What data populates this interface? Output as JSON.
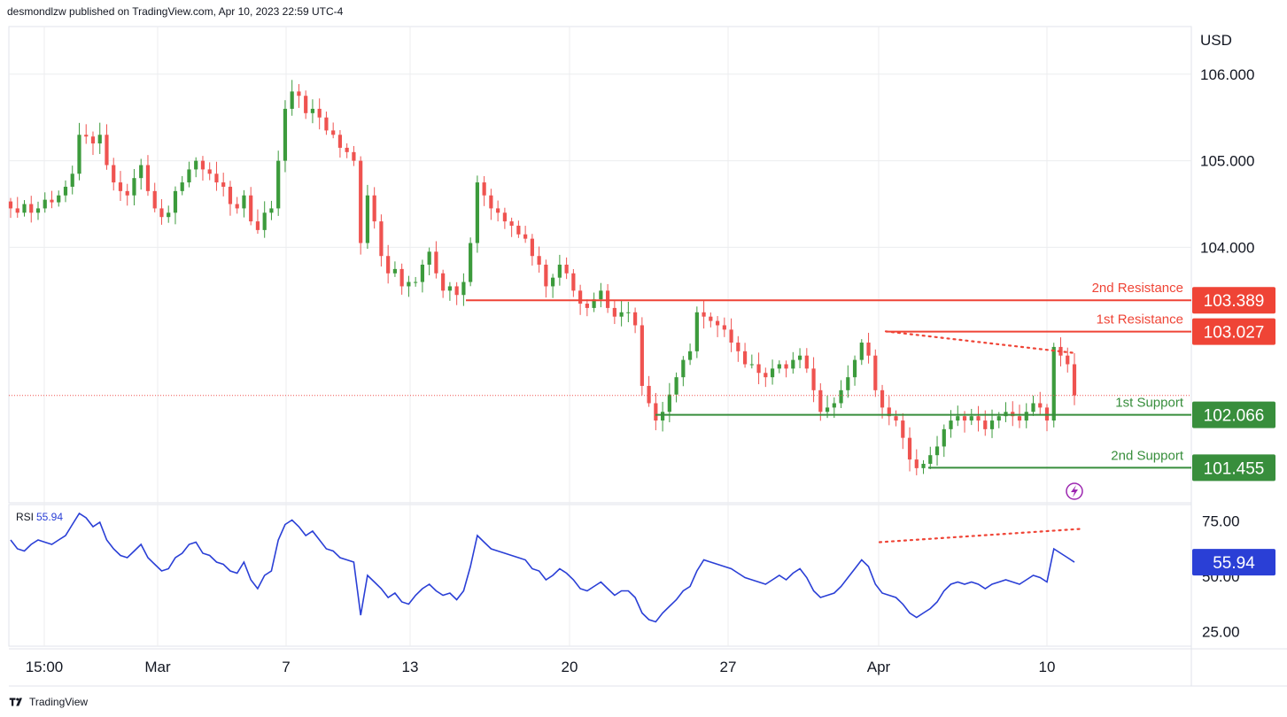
{
  "header": {
    "published_by": "desmondlzw published on TradingView.com, Apr 10, 2023 22:59 UTC-4"
  },
  "footer": {
    "brand": "TradingView"
  },
  "colors": {
    "up": "#26a69a",
    "up_body": "#3c9b3c",
    "down": "#ef5350",
    "resistance": "#ef4436",
    "support": "#388e3c",
    "rsi": "#2a3fd6",
    "rsi_label_bg": "#2a3fd6",
    "grid": "#ecedef",
    "axis_text": "#131722",
    "lightning": "#9c27b0"
  },
  "chart_data": [
    {
      "type": "candlestick",
      "axis_label": "USD",
      "ylim": [
        101.05,
        106.55
      ],
      "y_ticks": [
        "106.000",
        "105.000",
        "104.000"
      ],
      "x_ticks": [
        "15:00",
        "Mar",
        "7",
        "13",
        "20",
        "27",
        "Apr",
        "10"
      ],
      "levels": [
        {
          "name": "2nd Resistance",
          "value": 103.389,
          "label": "103.389",
          "kind": "resistance",
          "from": "Mar 14"
        },
        {
          "name": "1st Resistance",
          "value": 103.027,
          "label": "103.027",
          "kind": "resistance",
          "from": "Apr 3"
        },
        {
          "name": "1st Support",
          "value": 102.066,
          "label": "102.066",
          "kind": "support",
          "from": "Mar 23"
        },
        {
          "name": "2nd Support",
          "value": 101.455,
          "label": "101.455",
          "kind": "support",
          "from": "Apr 4"
        }
      ],
      "last_price": 102.29,
      "trendline": {
        "from": [
          0,
          103.03
        ],
        "to": [
          1,
          102.78
        ],
        "style": "dotted"
      },
      "closes": [
        104.45,
        104.4,
        104.5,
        104.4,
        104.45,
        104.55,
        104.52,
        104.6,
        104.7,
        104.85,
        105.3,
        105.28,
        105.2,
        105.3,
        104.95,
        104.75,
        104.65,
        104.6,
        104.8,
        104.95,
        104.65,
        104.45,
        104.35,
        104.4,
        104.65,
        104.75,
        104.9,
        105.0,
        104.9,
        104.85,
        104.75,
        104.7,
        104.5,
        104.45,
        104.6,
        104.3,
        104.2,
        104.4,
        104.45,
        105.0,
        105.6,
        105.8,
        105.75,
        105.55,
        105.6,
        105.5,
        105.35,
        105.3,
        105.15,
        105.1,
        105.0,
        104.05,
        104.6,
        104.3,
        103.9,
        103.7,
        103.75,
        103.55,
        103.6,
        103.6,
        103.8,
        103.95,
        103.7,
        103.5,
        103.55,
        103.45,
        103.6,
        104.05,
        104.75,
        104.6,
        104.45,
        104.4,
        104.3,
        104.25,
        104.15,
        104.1,
        103.9,
        103.8,
        103.55,
        103.65,
        103.8,
        103.7,
        103.5,
        103.35,
        103.3,
        103.4,
        103.5,
        103.3,
        103.2,
        103.25,
        103.25,
        103.1,
        102.4,
        102.2,
        102.0,
        102.1,
        102.3,
        102.5,
        102.7,
        102.8,
        103.25,
        103.2,
        103.15,
        103.1,
        103.05,
        102.9,
        102.8,
        102.65,
        102.65,
        102.55,
        102.5,
        102.6,
        102.65,
        102.6,
        102.7,
        102.75,
        102.6,
        102.35,
        102.1,
        102.15,
        102.2,
        102.35,
        102.5,
        102.7,
        102.9,
        102.75,
        102.35,
        102.15,
        102.05,
        102.0,
        101.8,
        101.55,
        101.45,
        101.5,
        101.6,
        101.7,
        101.9,
        102.0,
        102.05,
        102.0,
        102.05,
        102.0,
        101.9,
        102.0,
        102.05,
        102.1,
        102.05,
        102.0,
        102.1,
        102.2,
        102.15,
        102.0,
        102.85,
        102.75,
        102.65,
        102.29
      ],
      "rsi": {
        "label": "RSI",
        "value_label": "55.94",
        "ylim": [
          18,
          82
        ],
        "y_ticks": [
          "75.00",
          "25.00"
        ],
        "values": [
          66,
          62,
          61,
          64,
          66,
          65,
          64,
          66,
          68,
          73,
          78,
          76,
          72,
          74,
          66,
          62,
          59,
          58,
          61,
          64,
          58,
          55,
          52,
          53,
          58,
          60,
          64,
          65,
          60,
          59,
          56,
          55,
          52,
          51,
          56,
          48,
          44,
          50,
          52,
          66,
          73,
          75,
          72,
          68,
          70,
          66,
          62,
          61,
          58,
          57,
          56,
          32,
          50,
          47,
          44,
          40,
          42,
          38,
          37,
          41,
          44,
          46,
          43,
          41,
          42,
          39,
          43,
          54,
          68,
          65,
          62,
          61,
          60,
          59,
          58,
          57,
          53,
          52,
          48,
          50,
          53,
          51,
          48,
          44,
          43,
          45,
          47,
          44,
          41,
          43,
          43,
          40,
          33,
          30,
          29,
          33,
          36,
          39,
          43,
          45,
          52,
          57,
          56,
          55,
          54,
          53,
          51,
          49,
          48,
          47,
          46,
          48,
          50,
          48,
          51,
          53,
          49,
          43,
          40,
          41,
          42,
          45,
          49,
          53,
          57,
          54,
          46,
          42,
          41,
          40,
          37,
          33,
          31,
          33,
          35,
          38,
          43,
          46,
          47,
          46,
          47,
          46,
          44,
          46,
          47,
          48,
          47,
          46,
          48,
          50,
          49,
          47,
          62,
          60,
          58,
          55.94
        ],
        "trendline": {
          "style": "dotted"
        }
      }
    }
  ]
}
